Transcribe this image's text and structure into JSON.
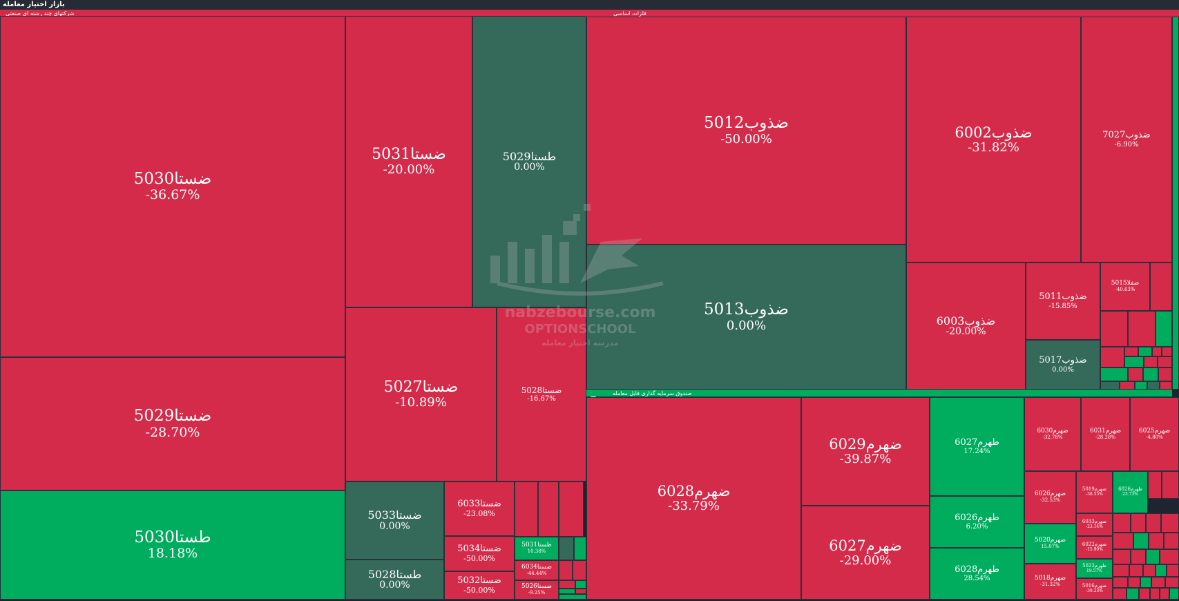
{
  "title": "بازار اختیار معامله",
  "colors": {
    "negative": "#d52b4a",
    "positive": "#00ad5f",
    "neutral": "#35695a",
    "group_band_positive": "#00ad5f",
    "group_band_negative": "#d52b4a",
    "border": "#2a2f3a"
  },
  "watermark": {
    "site": "nabzebourse.com",
    "school": "OPTIONSCHOOL",
    "tagline": "مدرسه اختیار معامله"
  },
  "chart_data": {
    "type": "treemap",
    "metric": "percent change",
    "groups": [
      {
        "name": "شرکتهای چند رشته ای صنعتی",
        "items": [
          {
            "name": "ضستا5030",
            "change": "-36.67%",
            "value": -36.67
          },
          {
            "name": "ضستا5029",
            "change": "-28.70%",
            "value": -28.7
          },
          {
            "name": "طستا5030",
            "change": "18.18%",
            "value": 18.18
          },
          {
            "name": "ضستا5031",
            "change": "-20.00%",
            "value": -20.0
          },
          {
            "name": "طستا5029",
            "change": "0.00%",
            "value": 0.0
          },
          {
            "name": "ضستا5027",
            "change": "-10.89%",
            "value": -10.89
          },
          {
            "name": "ضستا5028",
            "change": "-16.67%",
            "value": -16.67
          },
          {
            "name": "ضستا5033",
            "change": "0.00%",
            "value": 0.0
          },
          {
            "name": "طستا5028",
            "change": "0.00%",
            "value": 0.0
          },
          {
            "name": "ضستا6033",
            "change": "-23.08%",
            "value": -23.08
          },
          {
            "name": "ضستا5034",
            "change": "-50.00%",
            "value": -50.0
          },
          {
            "name": "ضستا5032",
            "change": "-50.00%",
            "value": -50.0
          },
          {
            "name": "طستا5031",
            "change": "10.38%",
            "value": 10.38
          },
          {
            "name": "ضستا6034",
            "change": "-44.44%",
            "value": -44.44
          },
          {
            "name": "ضستا5026",
            "change": "-9.25%",
            "value": -9.25
          }
        ]
      },
      {
        "name": "فلزات اساسی",
        "items": [
          {
            "name": "ضذوب5012",
            "change": "-50.00%",
            "value": -50.0
          },
          {
            "name": "ضذوب5013",
            "change": "0.00%",
            "value": 0.0
          },
          {
            "name": "ضذوب6002",
            "change": "-31.82%",
            "value": -31.82
          },
          {
            "name": "ضذوب7027",
            "change": "-6.90%",
            "value": -6.9
          },
          {
            "name": "ضذوب6003",
            "change": "-20.00%",
            "value": -20.0
          },
          {
            "name": "ضذوب5011",
            "change": "-15.85%",
            "value": -15.85
          },
          {
            "name": "ضذوب5017",
            "change": "0.00%",
            "value": 0.0
          },
          {
            "name": "ضفلا5015",
            "change": "-40.63%",
            "value": -40.63
          }
        ]
      },
      {
        "name": "صندوق سرمایه گذاری قابل معامله",
        "items": [
          {
            "name": "ضهرم6028",
            "change": "-33.79%",
            "value": -33.79
          },
          {
            "name": "ضهرم6029",
            "change": "-39.87%",
            "value": -39.87
          },
          {
            "name": "ضهرم6027",
            "change": "-29.00%",
            "value": -29.0
          },
          {
            "name": "طهرم6027",
            "change": "17.24%",
            "value": 17.24
          },
          {
            "name": "طهرم6026",
            "change": "6.20%",
            "value": 6.2
          },
          {
            "name": "طهرم6028",
            "change": "28.54%",
            "value": 28.54
          },
          {
            "name": "ضهرم6030",
            "change": "-32.78%",
            "value": -32.78
          },
          {
            "name": "ضهرم6031",
            "change": "-28.28%",
            "value": -28.28
          },
          {
            "name": "ضهرم6025",
            "change": "-4.80%",
            "value": -4.8
          },
          {
            "name": "ضهرم6026",
            "change": "-32.53%",
            "value": -32.53
          },
          {
            "name": "ضهرم5019",
            "change": "-38.55%",
            "value": -38.55
          },
          {
            "name": "طهرم6026",
            "change": "23.73%",
            "value": 23.73
          },
          {
            "name": "ضهرم6033",
            "change": "-23.14%",
            "value": -23.14
          },
          {
            "name": "ضهرم5020",
            "change": "15.07%",
            "value": 15.07
          },
          {
            "name": "ضهرم6022",
            "change": "-15.90%",
            "value": -15.9
          },
          {
            "name": "طهرم5022",
            "change": "19.57%",
            "value": 19.57
          },
          {
            "name": "ضهرم5018",
            "change": "-31.32%",
            "value": -31.32
          },
          {
            "name": "ضهرم5016",
            "change": "-39.23%",
            "value": -39.23
          }
        ]
      }
    ]
  }
}
